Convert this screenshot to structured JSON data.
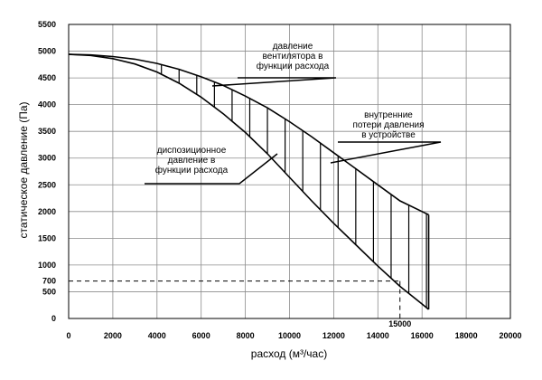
{
  "chart_data": {
    "type": "line",
    "xlabel": "расход (м³/час)",
    "ylabel": "статическое давление    (Па)",
    "xlim": [
      0,
      20000
    ],
    "ylim": [
      0,
      5500
    ],
    "x_ticks": [
      0,
      2000,
      4000,
      6000,
      8000,
      10000,
      12000,
      14000,
      16000,
      18000,
      20000
    ],
    "y_ticks": [
      0,
      500,
      1000,
      1500,
      2000,
      2500,
      3000,
      3500,
      4000,
      4500,
      5000,
      5500
    ],
    "extra_y_ticks": [
      700
    ],
    "grid": true,
    "series": [
      {
        "x": [
          0,
          1000,
          2000,
          3000,
          4000,
          5000,
          6000,
          7000,
          8000,
          9000,
          10000,
          11000,
          12000,
          13000,
          14000,
          15000,
          16000,
          16300
        ],
        "values": [
          4940,
          4930,
          4900,
          4850,
          4770,
          4660,
          4520,
          4360,
          4160,
          3940,
          3680,
          3400,
          3100,
          2800,
          2500,
          2200,
          2000,
          1940
        ]
      },
      {
        "x": [
          0,
          1000,
          2000,
          3000,
          4000,
          5000,
          6000,
          7000,
          8000,
          9000,
          10000,
          11000,
          12000,
          13000,
          14000,
          15000,
          16000,
          16300
        ],
        "values": [
          4940,
          4920,
          4860,
          4760,
          4610,
          4400,
          4140,
          3830,
          3480,
          3080,
          2640,
          2200,
          1780,
          1380,
          980,
          600,
          270,
          170
        ]
      }
    ],
    "reference_point": {
      "x": 15000,
      "y": 700,
      "x_label": "15000"
    },
    "annotations": [
      {
        "lines": [
          "давление",
          "вентилятора в",
          "функции  расхода"
        ]
      },
      {
        "lines": [
          "внутренние",
          "потери давления",
          "в устройстве"
        ]
      },
      {
        "lines": [
          "диспозиционное",
          "давление  в",
          "функции  расхода"
        ]
      }
    ]
  }
}
